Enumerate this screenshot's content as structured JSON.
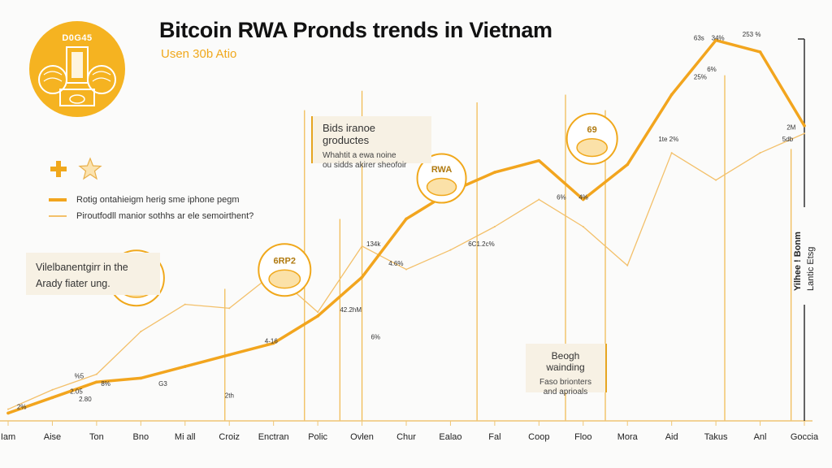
{
  "header": {
    "logo_text": "D0G45",
    "title": "Bitcoin RWA Pronds trends in Vietnam",
    "subtitle": "Usen 30b Atio"
  },
  "icons": [
    "plus-icon",
    "star-icon"
  ],
  "colors": {
    "accent": "#f0a81c",
    "line_main": "#f2a51e",
    "line_secondary": "#f3c06a",
    "axis": "#333333",
    "note_bg": "#f7f1e4"
  },
  "notes": {
    "left": {
      "line1": "Vilelbanentgirr in the",
      "line2": "Arady fiater ung."
    },
    "top": {
      "heading": "Bids iranoe groductes",
      "line1": "Whahtit a ewa noine",
      "line2": "ou sidds akirer sheofoir"
    },
    "bottom": {
      "heading": "Beogh wainding",
      "line1": "Faso brionters",
      "line2": "and aprioals"
    }
  },
  "chart_data": {
    "type": "line",
    "title": "Bitcoin RWA Pronds trends in Vietnam",
    "subtitle": "Usen 30b Atio",
    "xlabel": "",
    "ylabel": "Yilhee ! Bonm Lantic Etsg",
    "ylim": [
      0,
      100
    ],
    "grid": false,
    "legend_position": "top-left",
    "categories": [
      "Iam",
      "Aise",
      "Ton",
      "Bno",
      "Mi all",
      "Croiz",
      "Enctran",
      "Polic",
      "Ovlen",
      "Chur",
      "Ealao",
      "Fal",
      "Coop",
      "Floo",
      "Mora",
      "Aid",
      "Takus",
      "Anl",
      "Goccia"
    ],
    "series": [
      {
        "name": "Rotig ontahieigm herig sme iphone pegm",
        "style": "thick",
        "values": [
          2,
          6,
          10,
          11,
          14,
          17,
          20,
          27,
          37,
          52,
          59,
          64,
          67,
          57,
          66,
          84,
          98,
          95,
          76
        ]
      },
      {
        "name": "Piroutfodll manior sothhs ar ele semoirthent?",
        "style": "thin",
        "values": [
          3,
          8,
          12,
          23,
          30,
          29,
          38,
          28,
          45,
          39,
          44,
          50,
          57,
          50,
          40,
          69,
          62,
          69,
          74
        ]
      }
    ],
    "annotations": [
      "2%",
      "%5",
      "8%",
      "2.05",
      "2.80",
      "G3",
      "2th",
      "4-16",
      "42.2hM",
      "6%",
      "134k",
      "4.6%",
      "6C1.2c%",
      "6%",
      "4%",
      "1te 2%",
      "25%",
      "6%",
      "63s",
      "253 %",
      "34%",
      "2M",
      "5db"
    ],
    "circle_labels": [
      "6RP2",
      "RWA",
      "69"
    ]
  }
}
